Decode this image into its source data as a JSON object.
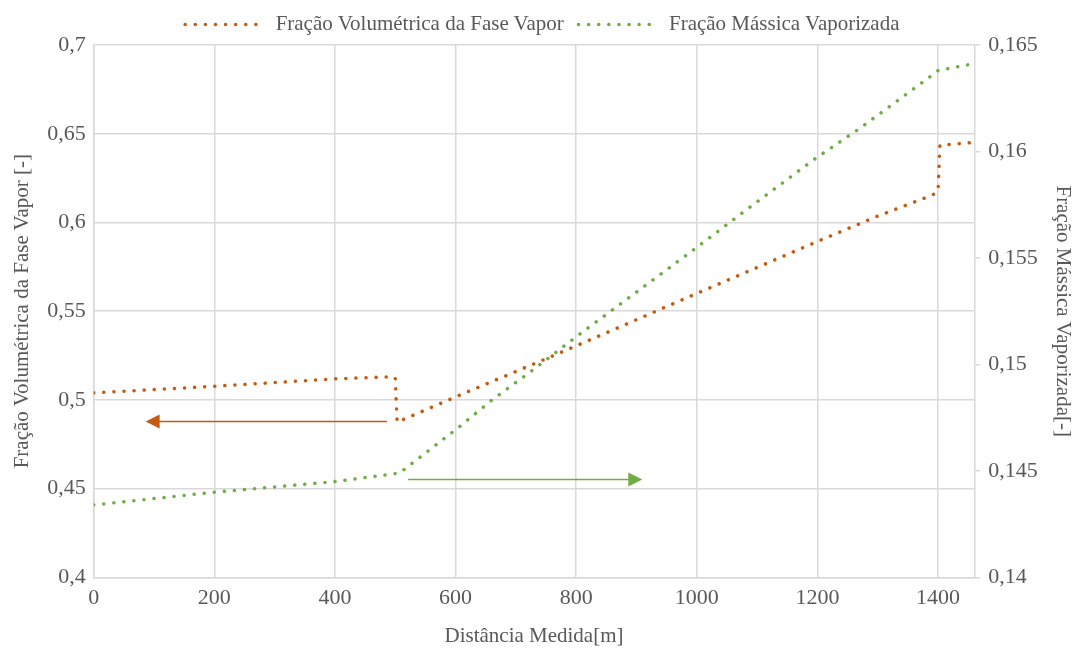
{
  "chart_data": {
    "type": "line",
    "xlabel": "Distância Medida[m]",
    "ylabel": "Fração Volumétrica da Fase Vapor [-]",
    "y2label": "Fração Mássica Vaporizada[-]",
    "series": [
      {
        "name": "Fração Volumétrica da Fase Vapor",
        "color": "#c55a11",
        "axis": "y",
        "x": [
          0,
          200,
          400,
          490,
          500,
          503,
          520,
          602,
          700,
          797,
          1000,
          1198,
          1300,
          1391,
          1400,
          1403,
          1455
        ],
        "values": [
          0.504,
          0.5077,
          0.5119,
          0.513,
          0.5125,
          0.4875,
          0.4899,
          0.502,
          0.516,
          0.53,
          0.56,
          0.589,
          0.6036,
          0.6155,
          0.618,
          0.6435,
          0.645
        ]
      },
      {
        "name": "Fração Mássica Vaporizada",
        "color": "#70ad47",
        "axis": "y2",
        "x": [
          0,
          200,
          400,
          507,
          603,
          659,
          731,
          800,
          1000,
          1098,
          1198,
          1271,
          1386,
          1400,
          1455
        ],
        "values": [
          0.1434,
          0.144,
          0.1445,
          0.1449,
          0.147,
          0.1483,
          0.1498,
          0.1513,
          0.1555,
          0.1576,
          0.1597,
          0.1611,
          0.1635,
          0.1638,
          0.1641
        ]
      }
    ],
    "xlim": [
      0,
      1460
    ],
    "xticks": [
      0,
      200,
      400,
      600,
      800,
      1000,
      1200,
      1400
    ],
    "ylim": [
      0.4,
      0.7
    ],
    "yticks": [
      {
        "value": 0.4,
        "label": "0,4"
      },
      {
        "value": 0.45,
        "label": "0,45"
      },
      {
        "value": 0.5,
        "label": "0,5"
      },
      {
        "value": 0.55,
        "label": "0,55"
      },
      {
        "value": 0.6,
        "label": "0,6"
      },
      {
        "value": 0.65,
        "label": "0,65"
      },
      {
        "value": 0.7,
        "label": "0,7"
      }
    ],
    "y2lim": [
      0.14,
      0.165
    ],
    "y2ticks": [
      {
        "value": 0.14,
        "label": "0,14"
      },
      {
        "value": 0.145,
        "label": "0,145"
      },
      {
        "value": 0.15,
        "label": "0,15"
      },
      {
        "value": 0.155,
        "label": "0,155"
      },
      {
        "value": 0.16,
        "label": "0,16"
      },
      {
        "value": 0.165,
        "label": "0,165"
      }
    ],
    "grid": true,
    "legend": "top",
    "marker": "none",
    "line_style": "dotted"
  }
}
